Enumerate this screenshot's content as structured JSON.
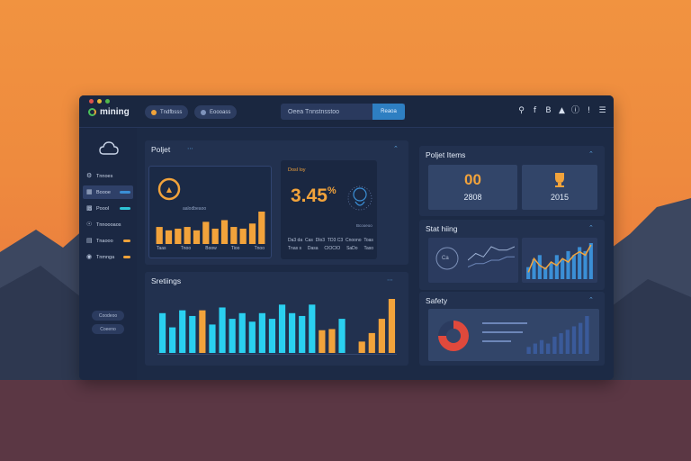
{
  "app": {
    "logo_text": "mining"
  },
  "header": {
    "pill1": "Tndfbsss",
    "pill2": "Eoooass",
    "search_value": "Oeea Tnnstnsstoo",
    "search_button": "Reaoa",
    "icons": [
      "search-icon",
      "facebook-icon",
      "bold-icon",
      "alert-icon",
      "info-icon",
      "pipe-icon",
      "menu-icon"
    ]
  },
  "sidebar": {
    "items": [
      {
        "icon": "gear-icon",
        "label": "Tnnoes",
        "bar_color": ""
      },
      {
        "icon": "grid-icon",
        "label": "Boooe",
        "bar_color": "#3b8fd6"
      },
      {
        "icon": "doc-icon",
        "label": "Poool",
        "bar_color": "#2ec4d6"
      },
      {
        "icon": "globe-icon",
        "label": "Tnnoooaos",
        "bar_color": ""
      },
      {
        "icon": "chart-icon",
        "label": "Tnaooo",
        "bar_color": "#f0a33a"
      },
      {
        "icon": "settings-icon",
        "label": "Tnmnga",
        "bar_color": "#f0a33a"
      }
    ],
    "button1": "Coodeoo",
    "button2": "Coeeno"
  },
  "panels": {
    "project": {
      "title": "Poljet",
      "card1_label": "aalodbeaoo",
      "card1_ticks": [
        "Taas",
        "Tnoo",
        "Boow",
        "Tioo",
        "Tnoo"
      ],
      "card2_label": "Dosl loy",
      "card2_value": "3.45",
      "card2_unit": "%",
      "card2_ticks": [
        "Da3 da",
        "Cas",
        "Dlo3",
        "TD3 C3",
        "Cnoono",
        "Toas"
      ],
      "card2_ticks_row2": [
        "Tnas s",
        "Dasa",
        "CIOCIO",
        "SaDo",
        "Taso"
      ],
      "card2_ring_label": "Bcooeoo"
    },
    "settings": {
      "title": "Sretiings"
    },
    "project_items": {
      "title": "Poljet Items",
      "box1_value": "00",
      "box1_sub": "2808",
      "box2_sub": "2015"
    },
    "stat_hiing": {
      "title": "Stat hiing",
      "ring_label": "Ca"
    },
    "safety": {
      "title": "Safety"
    }
  },
  "colors": {
    "accent_orange": "#f2a33b",
    "accent_cyan": "#2ad0f0",
    "accent_blue": "#3b8fd6"
  },
  "chart_data": [
    {
      "type": "bar",
      "values": [
        5,
        4,
        4.5,
        5,
        4,
        6.5,
        4.5,
        7,
        5,
        4.5,
        6,
        9.5
      ],
      "colors": [
        "#f2a33b"
      ]
    },
    {
      "type": "bar",
      "values": [
        7,
        4.5,
        7.5,
        6.5,
        7.5,
        5,
        8,
        6,
        7,
        5.5,
        7,
        6,
        8.5,
        7,
        6.5,
        8.5,
        4,
        4.2,
        6,
        0,
        2,
        3.5,
        6,
        9.5
      ],
      "colors": [
        "#2ad0f0",
        "#2ad0f0",
        "#2ad0f0",
        "#2ad0f0",
        "#f2a33b",
        "#2ad0f0",
        "#2ad0f0",
        "#2ad0f0",
        "#2ad0f0",
        "#2ad0f0",
        "#2ad0f0",
        "#2ad0f0",
        "#2ad0f0",
        "#2ad0f0",
        "#2ad0f0",
        "#2ad0f0",
        "#f2a33b",
        "#f2a33b",
        "#2ad0f0",
        "#2ad0f0",
        "#f2a33b",
        "#f2a33b",
        "#f2a33b",
        "#f2a33b"
      ]
    },
    {
      "type": "line",
      "series": [
        {
          "values": [
            2,
            3,
            2.5,
            4,
            3.5,
            3.5,
            4
          ]
        },
        {
          "values": [
            1,
            1.5,
            1.5,
            2,
            2,
            2.5,
            2.5
          ]
        }
      ]
    },
    {
      "type": "bar",
      "values": [
        3,
        5,
        6,
        3,
        4,
        6,
        5,
        7,
        6,
        8,
        7,
        9
      ],
      "colors": [
        "#3b8fd6"
      ],
      "overlay_line": [
        2,
        6,
        4,
        3,
        5,
        4,
        6,
        5,
        7,
        8,
        7,
        10
      ]
    },
    {
      "type": "pie",
      "values": [
        75,
        25
      ],
      "colors": [
        "#e0493c",
        "#2b3b5f"
      ]
    },
    {
      "type": "bar",
      "values": [
        1,
        1.5,
        2,
        1.5,
        2.5,
        3,
        3.5,
        4,
        4.5,
        5.5
      ],
      "colors": [
        "#3a5a9a"
      ]
    }
  ]
}
